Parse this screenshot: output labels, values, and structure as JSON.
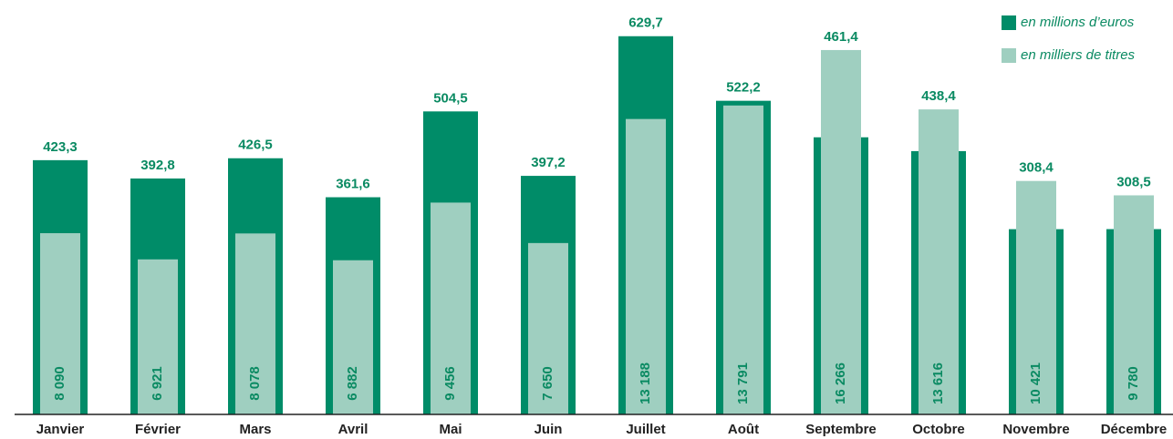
{
  "chart_data": {
    "type": "bar",
    "categories": [
      "Janvier",
      "Février",
      "Mars",
      "Avril",
      "Mai",
      "Juin",
      "Juillet",
      "Août",
      "Septembre",
      "Octobre",
      "Novembre",
      "Décembre"
    ],
    "series": [
      {
        "name": "en millions d’euros",
        "color": "#008c68",
        "values": [
          423.3,
          392.8,
          426.5,
          361.6,
          504.5,
          397.2,
          629.7,
          522.2,
          461.4,
          438.4,
          308.4,
          308.5
        ],
        "value_labels": [
          "423,3",
          "392,8",
          "426,5",
          "361,6",
          "504,5",
          "397,2",
          "629,7",
          "522,2",
          "461,4",
          "438,4",
          "308,4",
          "308,5"
        ]
      },
      {
        "name": "en milliers de titres",
        "color": "#9fcfc0",
        "axis": "y2",
        "values": [
          8090,
          6921,
          8078,
          6882,
          9456,
          7650,
          13188,
          13791,
          16266,
          13616,
          10421,
          9780
        ],
        "value_labels": [
          "8 090",
          "6 921",
          "8 078",
          "6 882",
          "9 456",
          "7 650",
          "13 188",
          "13 791",
          "16 266",
          "13 616",
          "10 421",
          "9 780"
        ]
      }
    ],
    "ylim": [
      0,
      690
    ],
    "y2lim": [
      0,
      18500
    ]
  }
}
